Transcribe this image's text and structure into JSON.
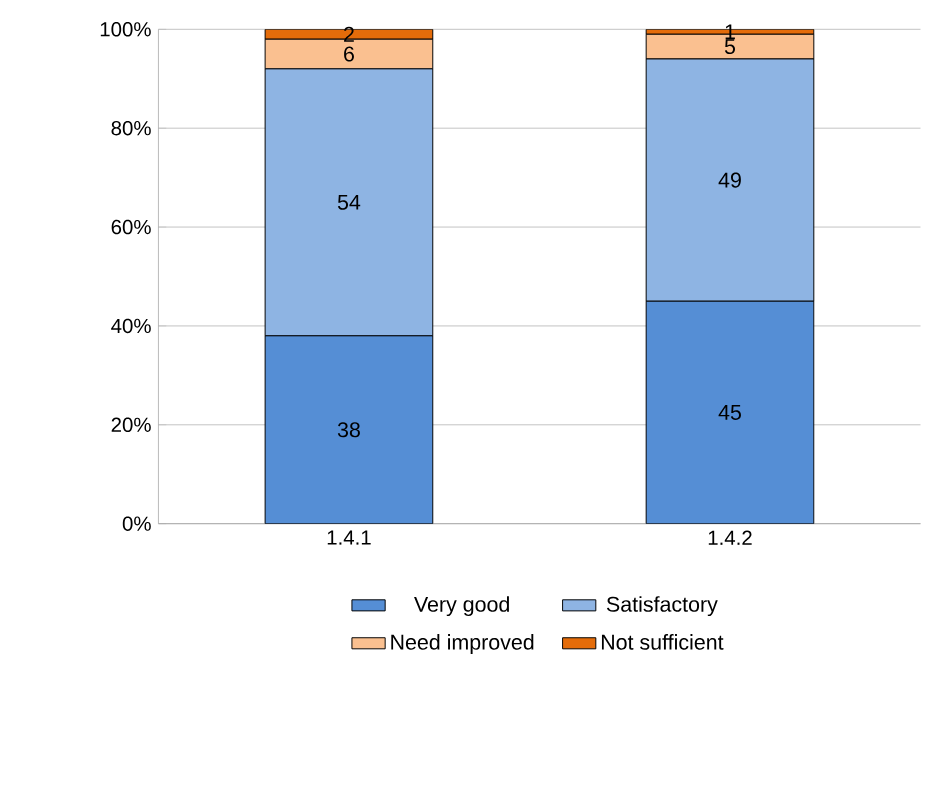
{
  "chart_data": {
    "type": "bar",
    "stacked": true,
    "categories": [
      "1.4.1",
      "1.4.2"
    ],
    "series": [
      {
        "name": "Very good",
        "color": "#558ed5",
        "values": [
          38,
          45
        ]
      },
      {
        "name": "Satisfactory",
        "color": "#8eb4e3",
        "values": [
          54,
          49
        ]
      },
      {
        "name": "Need improved",
        "color": "#fac090",
        "values": [
          6,
          5
        ]
      },
      {
        "name": "Not sufficient",
        "color": "#e46c0a",
        "values": [
          2,
          1
        ]
      }
    ],
    "ylim": [
      0,
      100
    ],
    "yticks": [
      {
        "value": 0,
        "label": "0%"
      },
      {
        "value": 20,
        "label": "20%"
      },
      {
        "value": 40,
        "label": "40%"
      },
      {
        "value": 60,
        "label": "60%"
      },
      {
        "value": 80,
        "label": "80%"
      },
      {
        "value": 100,
        "label": "100%"
      }
    ],
    "grid": "y",
    "legend": "bottom",
    "data_labels": true
  }
}
